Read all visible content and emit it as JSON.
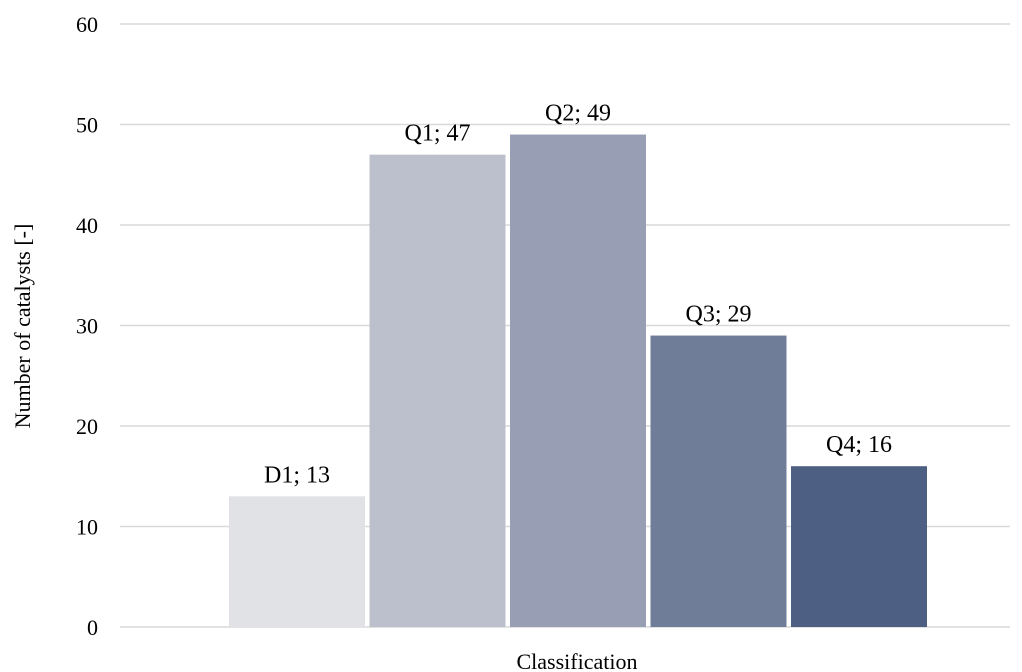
{
  "chart_data": {
    "type": "bar",
    "title": "",
    "xlabel": "Classification",
    "ylabel": "Number of catalysts [-]",
    "ylim": [
      0,
      60
    ],
    "yticks": [
      0,
      10,
      20,
      30,
      40,
      50,
      60
    ],
    "grid": true,
    "legend": "none",
    "categories": [
      "D1",
      "Q1",
      "Q2",
      "Q3",
      "Q4"
    ],
    "values": [
      13,
      47,
      49,
      29,
      16
    ],
    "data_labels": [
      "D1; 13",
      "Q1; 47",
      "Q2; 49",
      "Q3; 29",
      "Q4; 16"
    ],
    "colors": [
      "#e1e2e5",
      "#bcc0cc",
      "#989fb4",
      "#707d98",
      "#4d6083"
    ]
  }
}
